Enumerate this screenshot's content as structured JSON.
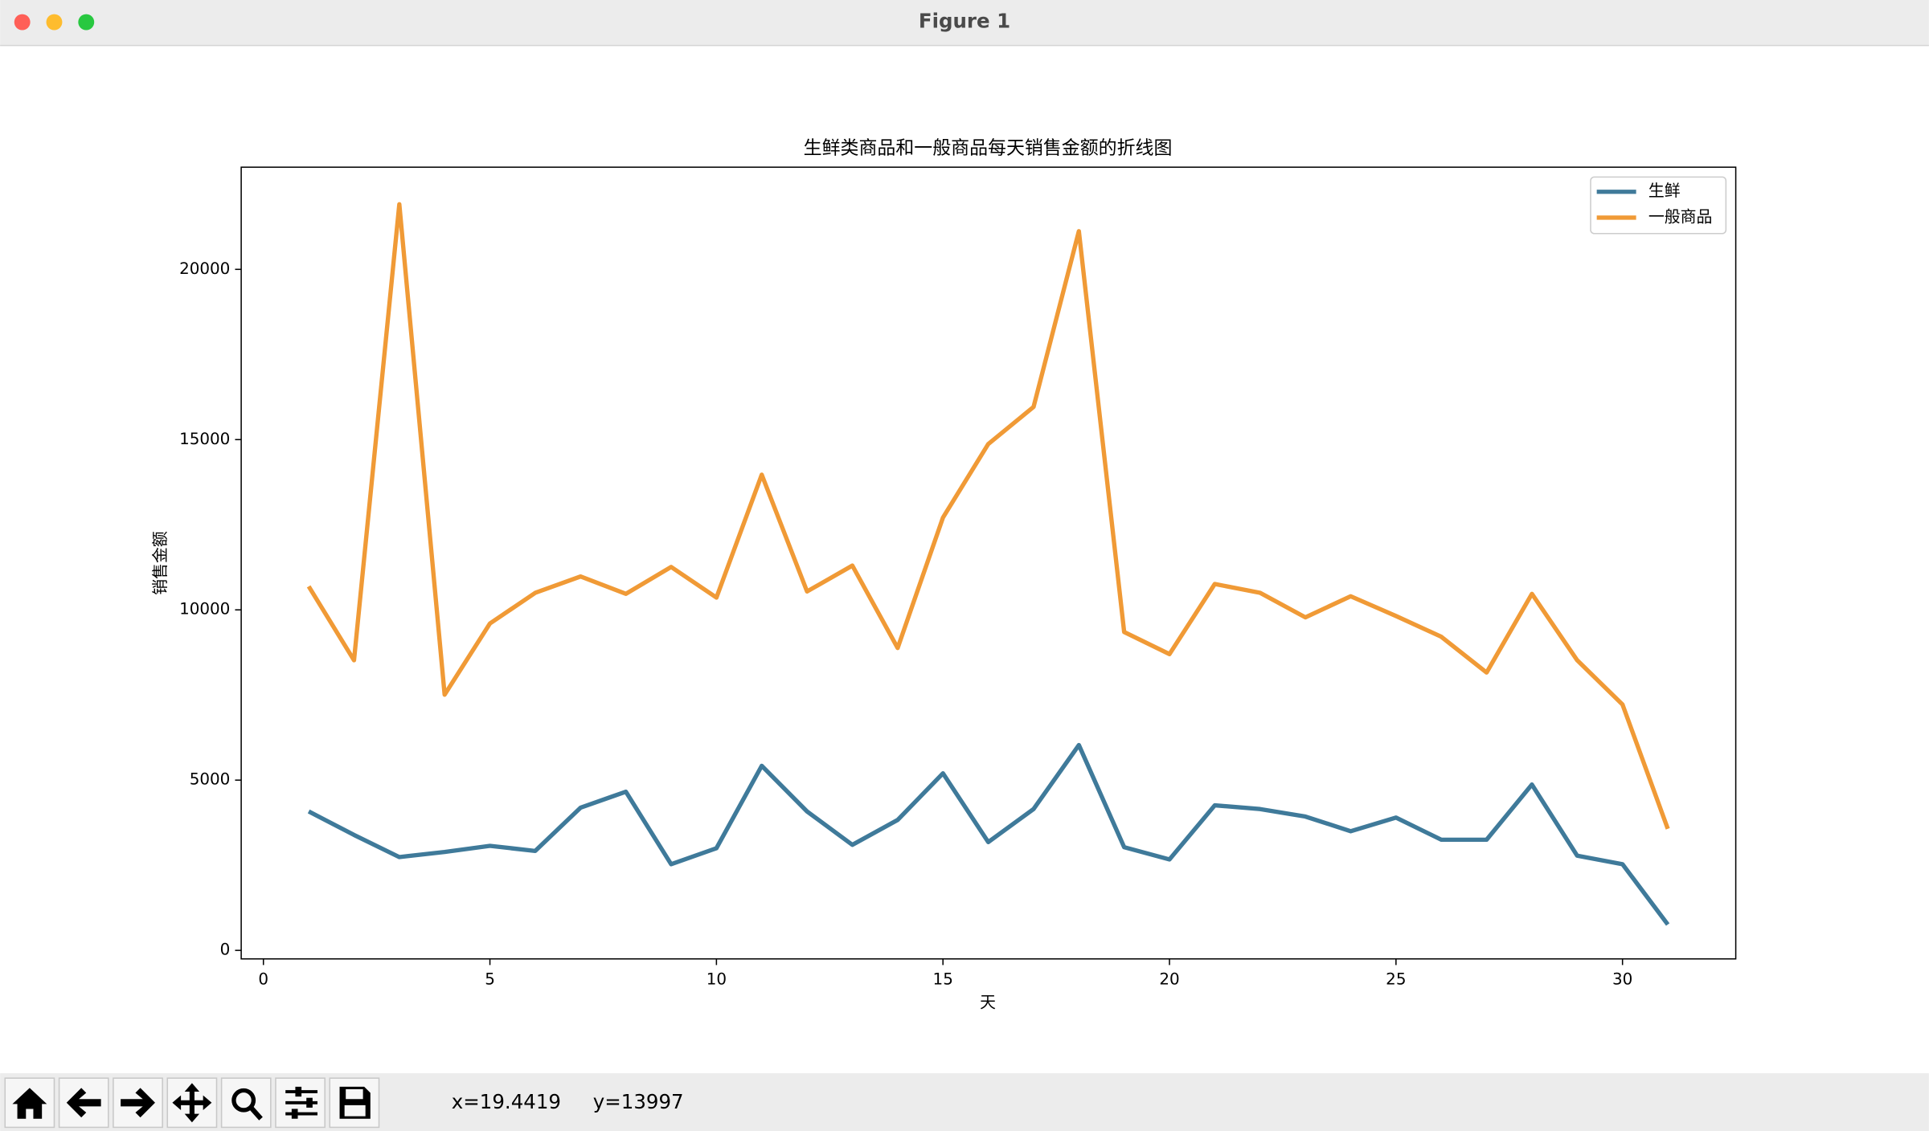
{
  "window": {
    "title": "Figure 1"
  },
  "chart_data": {
    "type": "line",
    "title": "生鲜类商品和一般商品每天销售金额的折线图",
    "x_label": "天",
    "y_label": "销售金额",
    "x": [
      1,
      2,
      3,
      4,
      5,
      6,
      7,
      8,
      9,
      10,
      11,
      12,
      13,
      14,
      15,
      16,
      17,
      18,
      19,
      20,
      21,
      22,
      23,
      24,
      25,
      26,
      27,
      28,
      29,
      30,
      31
    ],
    "series": [
      {
        "name": "生鲜",
        "color": "#3f7a9a",
        "values": [
          4080,
          3390,
          2740,
          2890,
          3070,
          2920,
          4190,
          4660,
          2530,
          3000,
          5420,
          4080,
          3100,
          3830,
          5200,
          3180,
          4150,
          6030,
          3030,
          2670,
          4260,
          4150,
          3930,
          3500,
          3900,
          3250,
          3250,
          4870,
          2780,
          2530,
          760
        ]
      },
      {
        "name": "一般商品",
        "color": "#f09a36",
        "values": [
          10690,
          8520,
          21910,
          7510,
          9600,
          10500,
          10980,
          10470,
          11260,
          10360,
          13970,
          10540,
          11300,
          8880,
          12710,
          14870,
          15960,
          21120,
          9350,
          8700,
          10760,
          10500,
          9780,
          10400,
          9820,
          9210,
          8160,
          10470,
          8520,
          7220,
          3570
        ]
      }
    ],
    "xlim": [
      -0.49,
      32.5
    ],
    "ylim": [
      -250,
      23000
    ],
    "xticks": [
      0,
      5,
      10,
      15,
      20,
      25,
      30
    ],
    "yticks": [
      0,
      5000,
      10000,
      15000,
      20000
    ],
    "legend": "upper right"
  },
  "toolbar": {
    "x_coordinate": "x=19.4419",
    "y_coordinate": "y=13997"
  }
}
